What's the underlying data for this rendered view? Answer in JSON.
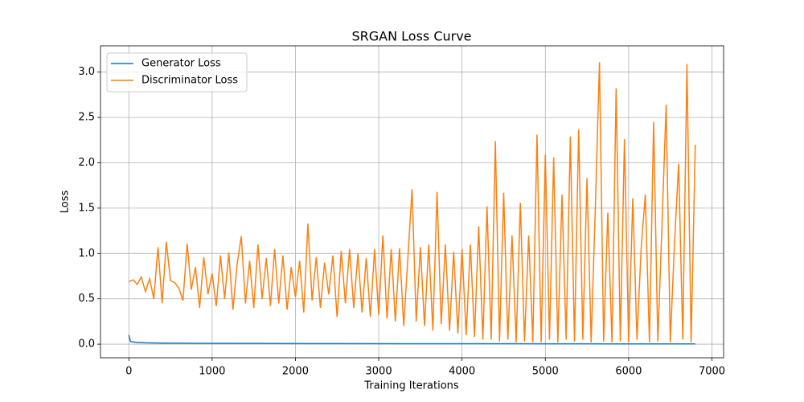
{
  "chart_data": {
    "type": "line",
    "title": "SRGAN Loss Curve",
    "x_label": "Training Iterations",
    "y_label": "Loss",
    "xlim": [
      -340,
      7140
    ],
    "ylim": [
      -0.15,
      3.29
    ],
    "xticks": [
      0,
      1000,
      2000,
      3000,
      4000,
      5000,
      6000,
      7000
    ],
    "yticks": [
      {
        "value": 0,
        "label": "0.0"
      },
      0.5,
      {
        "value": 1,
        "label": "1.0"
      },
      1.5,
      {
        "value": 2,
        "label": "2.0"
      },
      2.5,
      {
        "value": 3,
        "label": "3.0"
      }
    ],
    "grid": true,
    "legend": "upper left",
    "series": [
      {
        "name": "Generator Loss",
        "color": "#1f77b4",
        "x": [
          0,
          20,
          50,
          100,
          200,
          400,
          800,
          1500,
          2500,
          3500,
          4500,
          5000,
          5500,
          6000,
          6500,
          6800
        ],
        "values": [
          0.1,
          0.03,
          0.025,
          0.02,
          0.015,
          0.012,
          0.01,
          0.008,
          0.006,
          0.005,
          0.005,
          0.004,
          0.004,
          0.003,
          0.003,
          0.003
        ]
      },
      {
        "name": "Discriminator Loss",
        "color": "#ff7f0e",
        "x": [
          0,
          50,
          100,
          150,
          200,
          250,
          300,
          350,
          400,
          450,
          500,
          550,
          600,
          650,
          700,
          750,
          800,
          850,
          900,
          950,
          1000,
          1050,
          1100,
          1150,
          1200,
          1250,
          1300,
          1350,
          1400,
          1450,
          1500,
          1550,
          1600,
          1650,
          1700,
          1750,
          1800,
          1850,
          1900,
          1950,
          2000,
          2050,
          2100,
          2150,
          2200,
          2250,
          2300,
          2350,
          2400,
          2450,
          2500,
          2550,
          2600,
          2650,
          2700,
          2750,
          2800,
          2850,
          2900,
          2950,
          3000,
          3050,
          3100,
          3150,
          3200,
          3250,
          3300,
          3350,
          3400,
          3450,
          3500,
          3550,
          3600,
          3650,
          3700,
          3750,
          3800,
          3850,
          3900,
          3950,
          4000,
          4050,
          4100,
          4150,
          4200,
          4250,
          4300,
          4350,
          4400,
          4450,
          4500,
          4550,
          4600,
          4650,
          4700,
          4750,
          4800,
          4850,
          4900,
          4950,
          5000,
          5050,
          5100,
          5150,
          5200,
          5250,
          5300,
          5350,
          5400,
          5450,
          5500,
          5550,
          5600,
          5650,
          5700,
          5750,
          5800,
          5850,
          5900,
          5950,
          6000,
          6050,
          6100,
          6150,
          6200,
          6250,
          6300,
          6350,
          6400,
          6450,
          6500,
          6550,
          6600,
          6650,
          6700,
          6750,
          6800
        ],
        "values": [
          0.69,
          0.71,
          0.66,
          0.74,
          0.58,
          0.72,
          0.5,
          1.07,
          0.45,
          1.13,
          0.7,
          0.68,
          0.62,
          0.48,
          1.11,
          0.6,
          0.85,
          0.4,
          0.96,
          0.55,
          0.78,
          0.42,
          0.98,
          0.5,
          1.01,
          0.38,
          0.88,
          1.19,
          0.45,
          0.92,
          0.4,
          1.1,
          0.5,
          0.95,
          0.42,
          1.05,
          0.45,
          0.98,
          0.38,
          0.85,
          0.52,
          0.92,
          0.35,
          1.33,
          0.48,
          0.96,
          0.4,
          0.9,
          0.55,
          0.98,
          0.3,
          1.03,
          0.45,
          1.05,
          0.4,
          1.0,
          0.35,
          0.95,
          0.3,
          1.05,
          0.32,
          1.2,
          0.28,
          1.05,
          0.25,
          1.06,
          0.2,
          0.95,
          1.71,
          0.25,
          1.07,
          0.2,
          1.1,
          0.15,
          1.68,
          0.22,
          1.1,
          0.15,
          1.02,
          0.12,
          1.05,
          0.1,
          1.1,
          0.08,
          1.3,
          0.05,
          1.52,
          0.05,
          2.24,
          0.03,
          1.67,
          0.05,
          1.2,
          0.02,
          1.56,
          0.03,
          1.2,
          0.02,
          2.31,
          0.02,
          2.09,
          0.05,
          2.06,
          0.02,
          1.65,
          0.05,
          2.29,
          0.03,
          2.37,
          0.05,
          1.83,
          0.02,
          1.5,
          3.11,
          0.03,
          1.45,
          0.02,
          2.82,
          0.03,
          2.26,
          0.02,
          1.61,
          0.05,
          1.05,
          1.65,
          0.02,
          2.45,
          0.03,
          1.3,
          2.64,
          0.02,
          1.1,
          1.99,
          0.05,
          3.09,
          0.02,
          2.2
        ]
      }
    ]
  }
}
